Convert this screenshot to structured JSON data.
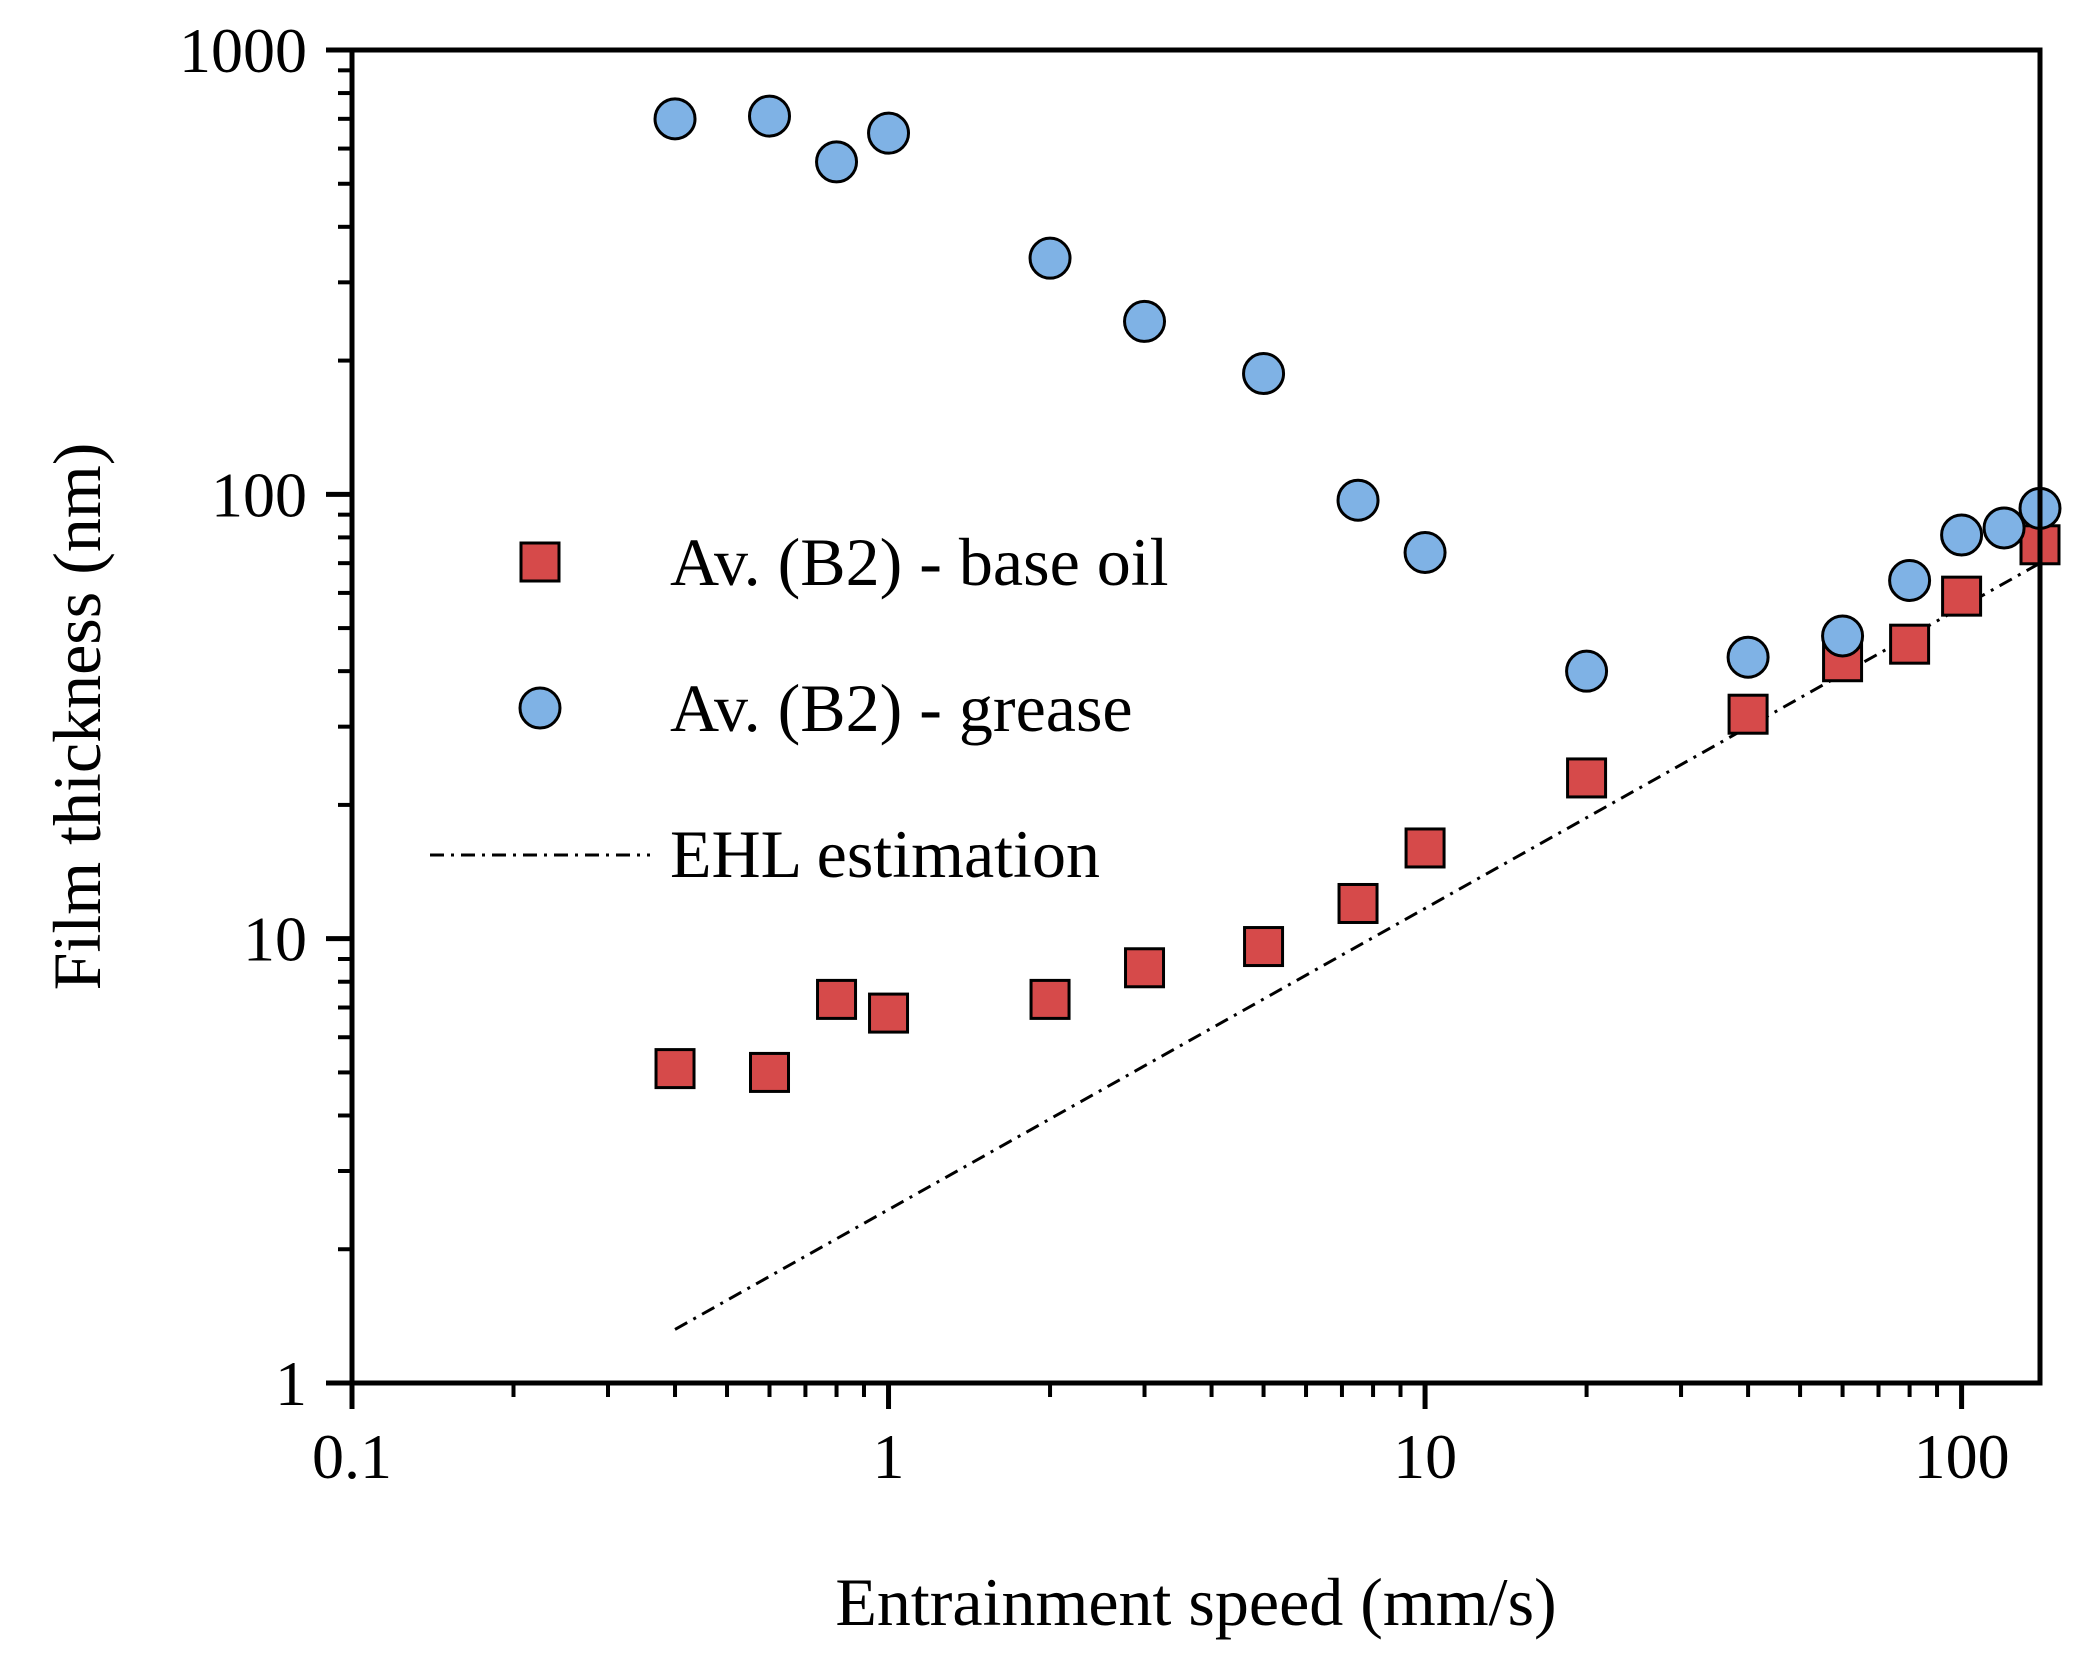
{
  "chart_data": {
    "type": "scatter",
    "title": "",
    "xlabel": "Entrainment speed (mm/s)",
    "ylabel": "Film thickness (nm)",
    "xscale": "log",
    "yscale": "log",
    "xlim": [
      0.1,
      140
    ],
    "ylim": [
      1,
      1000
    ],
    "xticks": [
      0.1,
      1,
      10,
      100
    ],
    "yticks": [
      1,
      10,
      100,
      1000
    ],
    "xtick_labels": [
      "0.1",
      "1",
      "10",
      "100"
    ],
    "ytick_labels": [
      "1",
      "10",
      "100",
      "1000"
    ],
    "legend_position": "center",
    "series": [
      {
        "name": "Av. (B2) - base oil",
        "marker": "square",
        "color": "#d64a4a",
        "x": [
          0.4,
          0.6,
          0.8,
          1,
          2,
          3,
          5,
          7.5,
          10,
          20,
          40,
          60,
          80,
          100,
          140
        ],
        "y": [
          5.1,
          5.0,
          7.3,
          6.8,
          7.3,
          8.6,
          9.6,
          12,
          16,
          23,
          32,
          42,
          46,
          59,
          77
        ]
      },
      {
        "name": "Av. (B2) - grease",
        "marker": "circle",
        "color": "#7fb2e5",
        "x": [
          0.4,
          0.6,
          0.8,
          1,
          2,
          3,
          5,
          7.5,
          10,
          20,
          40,
          60,
          80,
          100,
          120,
          140
        ],
        "y": [
          700,
          710,
          560,
          650,
          340,
          245,
          187,
          97,
          74,
          40,
          43,
          48,
          64,
          81,
          84,
          93
        ]
      },
      {
        "name": "EHL estimation",
        "line": "dash-dot",
        "color": "#000000",
        "x": [
          0.4,
          140
        ],
        "y": [
          1.32,
          70
        ]
      }
    ]
  }
}
